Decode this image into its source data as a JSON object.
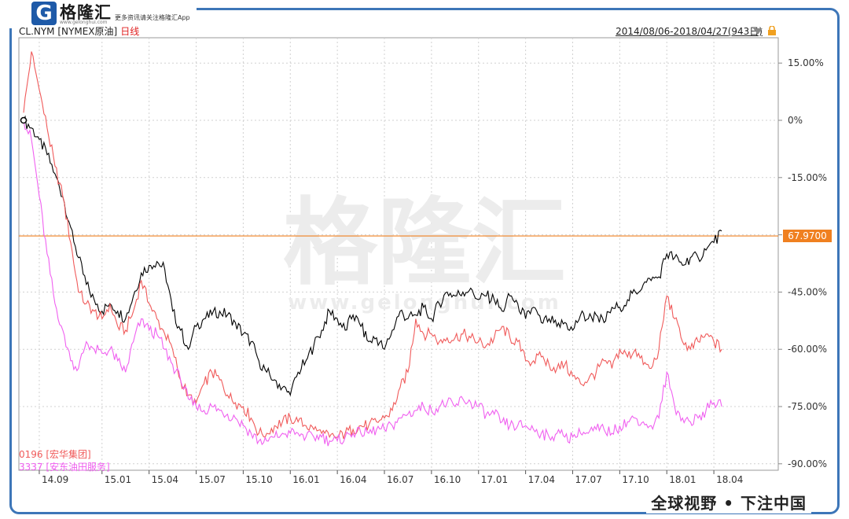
{
  "brand": {
    "logo_letter": "G",
    "name": "格隆汇",
    "url": "www.gelonghui.com",
    "slogan": "更多资讯请关注格隆汇App",
    "watermark_cn": "格隆汇",
    "watermark_url": "www.gelonghui.com"
  },
  "header": {
    "instrument": "CL.NYM [NYMEX原油]",
    "period": "日线",
    "date_range": "2014/08/06-2018/04/27(943日)"
  },
  "footer_slogan": "全球视野 • 下注中国",
  "colors": {
    "crude": "#000000",
    "s0196": "#f05a5a",
    "s3337": "#f060f0",
    "price_line": "#f08020",
    "frame": "#3d76b8",
    "grid": "#d0d0d0"
  },
  "icons": [
    "dropdown-arrow-icon",
    "lock-icon"
  ],
  "current_price_label": "67.9700",
  "chart_data": {
    "type": "line",
    "title": "CL.NYM [NYMEX原油] 日线",
    "ylabel": "",
    "xlabel": "",
    "ylim": [
      -90,
      20
    ],
    "yticks": [
      15,
      0,
      -15,
      -30,
      -45,
      -60,
      -75,
      -90
    ],
    "ytick_labels": [
      "15.00%",
      "0%",
      "-15.00%",
      "",
      "-45.00%",
      "-60.00%",
      "-75.00%",
      "-90.00%"
    ],
    "x_range": [
      0,
      46
    ],
    "x_ticks": [
      {
        "label": "14.09",
        "m": 1
      },
      {
        "label": "15.01",
        "m": 5
      },
      {
        "label": "15.04",
        "m": 8
      },
      {
        "label": "15.07",
        "m": 11
      },
      {
        "label": "15.10",
        "m": 14
      },
      {
        "label": "16.01",
        "m": 17
      },
      {
        "label": "16.04",
        "m": 20
      },
      {
        "label": "16.07",
        "m": 23
      },
      {
        "label": "16.10",
        "m": 26
      },
      {
        "label": "17.01",
        "m": 29
      },
      {
        "label": "17.04",
        "m": 32
      },
      {
        "label": "17.07",
        "m": 35
      },
      {
        "label": "17.10",
        "m": 38
      },
      {
        "label": "18.01",
        "m": 41
      },
      {
        "label": "18.04",
        "m": 44
      }
    ],
    "reference_line": {
      "y": -30.3,
      "label": "67.9700"
    },
    "legend": [
      {
        "label": "0196 [宏华集团]",
        "series": 1
      },
      {
        "label": "3337 [安东油田服务]",
        "series": 2
      }
    ],
    "series": [
      {
        "name": "CL.NYM [NYMEX原油]",
        "x": [
          0,
          0.5,
          1,
          1.5,
          2,
          2.5,
          3,
          3.5,
          4,
          4.5,
          5,
          5.5,
          6,
          6.5,
          7,
          7.5,
          8,
          8.5,
          9,
          9.5,
          10,
          10.5,
          11,
          11.5,
          12,
          12.5,
          13,
          13.5,
          14,
          14.5,
          15,
          15.5,
          16,
          16.5,
          17,
          17.5,
          18,
          18.5,
          19,
          19.5,
          20,
          20.5,
          21,
          21.5,
          22,
          22.5,
          23,
          23.5,
          24,
          24.5,
          25,
          25.5,
          26,
          26.5,
          27,
          27.5,
          28,
          28.5,
          29,
          29.5,
          30,
          30.5,
          31,
          31.5,
          32,
          32.5,
          33,
          33.5,
          34,
          34.5,
          35,
          35.5,
          36,
          36.5,
          37,
          37.5,
          38,
          38.5,
          39,
          39.5,
          40,
          40.5,
          41,
          41.5,
          42,
          42.5,
          43,
          43.5,
          44,
          44.5
        ],
        "y": [
          0,
          -2,
          -5,
          -9,
          -14,
          -20,
          -28,
          -36,
          -43,
          -47,
          -50,
          -48,
          -50,
          -52,
          -46,
          -40,
          -38,
          -37,
          -39,
          -50,
          -55,
          -60,
          -54,
          -52,
          -51,
          -50,
          -51,
          -53,
          -56,
          -58,
          -63,
          -66,
          -68,
          -70,
          -72,
          -66,
          -63,
          -59,
          -55,
          -50,
          -52,
          -55,
          -51,
          -54,
          -58,
          -57,
          -60,
          -55,
          -50,
          -52,
          -51,
          -49,
          -52,
          -48,
          -45,
          -46,
          -45,
          -44,
          -47,
          -46,
          -47,
          -50,
          -46,
          -48,
          -52,
          -49,
          -53,
          -52,
          -54,
          -53,
          -55,
          -51,
          -52,
          -51,
          -53,
          -49,
          -49,
          -47,
          -45,
          -43,
          -42,
          -41,
          -35,
          -36,
          -38,
          -36,
          -36,
          -34,
          -32,
          -29
        ]
      },
      {
        "name": "0196 [宏华集团]",
        "x": [
          0,
          0.5,
          1,
          1.5,
          2,
          2.5,
          3,
          3.5,
          4,
          4.5,
          5,
          5.5,
          6,
          6.5,
          7,
          7.5,
          8,
          8.5,
          9,
          9.5,
          10,
          10.5,
          11,
          11.5,
          12,
          12.5,
          13,
          13.5,
          14,
          14.5,
          15,
          15.5,
          16,
          16.5,
          17,
          17.5,
          18,
          18.5,
          19,
          19.5,
          20,
          20.5,
          21,
          21.5,
          22,
          22.5,
          23,
          23.5,
          24,
          24.5,
          25,
          25.5,
          26,
          26.5,
          27,
          27.5,
          28,
          28.5,
          29,
          29.5,
          30,
          30.5,
          31,
          31.5,
          32,
          32.5,
          33,
          33.5,
          34,
          34.5,
          35,
          35.5,
          36,
          36.5,
          37,
          37.5,
          38,
          38.5,
          39,
          39.5,
          40,
          40.5,
          41,
          41.5,
          42,
          42.5,
          43,
          43.5,
          44,
          44.5
        ],
        "y": [
          2,
          18,
          8,
          -2,
          -12,
          -20,
          -32,
          -45,
          -48,
          -50,
          -52,
          -48,
          -54,
          -55,
          -50,
          -42,
          -48,
          -52,
          -56,
          -60,
          -68,
          -72,
          -74,
          -69,
          -66,
          -68,
          -72,
          -74,
          -75,
          -78,
          -82,
          -82,
          -80,
          -79,
          -78,
          -79,
          -80,
          -81,
          -82,
          -83,
          -83,
          -82,
          -81,
          -80,
          -80,
          -79,
          -78,
          -76,
          -70,
          -66,
          -52,
          -56,
          -56,
          -58,
          -57,
          -57,
          -56,
          -57,
          -58,
          -59,
          -57,
          -54,
          -57,
          -58,
          -63,
          -63,
          -62,
          -64,
          -65,
          -64,
          -67,
          -69,
          -68,
          -66,
          -63,
          -65,
          -60,
          -62,
          -60,
          -64,
          -65,
          -60,
          -46,
          -52,
          -58,
          -60,
          -58,
          -56,
          -58,
          -60
        ]
      },
      {
        "name": "3337 [安东油田服务]",
        "x": [
          0,
          0.5,
          1,
          1.5,
          2,
          2.5,
          3,
          3.5,
          4,
          4.5,
          5,
          5.5,
          6,
          6.5,
          7,
          7.5,
          8,
          8.5,
          9,
          9.5,
          10,
          10.5,
          11,
          11.5,
          12,
          12.5,
          13,
          13.5,
          14,
          14.5,
          15,
          15.5,
          16,
          16.5,
          17,
          17.5,
          18,
          18.5,
          19,
          19.5,
          20,
          20.5,
          21,
          21.5,
          22,
          22.5,
          23,
          23.5,
          24,
          24.5,
          25,
          25.5,
          26,
          26.5,
          27,
          27.5,
          28,
          28.5,
          29,
          29.5,
          30,
          30.5,
          31,
          31.5,
          32,
          32.5,
          33,
          33.5,
          34,
          34.5,
          35,
          35.5,
          36,
          36.5,
          37,
          37.5,
          38,
          38.5,
          39,
          39.5,
          40,
          40.5,
          41,
          41.5,
          42,
          42.5,
          43,
          43.5,
          44,
          44.5
        ],
        "y": [
          0,
          -5,
          -20,
          -35,
          -48,
          -55,
          -63,
          -65,
          -58,
          -60,
          -61,
          -60,
          -63,
          -66,
          -58,
          -52,
          -55,
          -56,
          -60,
          -64,
          -68,
          -73,
          -75,
          -76,
          -75,
          -76,
          -77,
          -78,
          -80,
          -82,
          -84,
          -84,
          -83,
          -82,
          -82,
          -82,
          -83,
          -83,
          -83,
          -84,
          -84,
          -83,
          -82,
          -82,
          -82,
          -81,
          -81,
          -80,
          -78,
          -77,
          -76,
          -75,
          -76,
          -75,
          -74,
          -75,
          -73,
          -74,
          -75,
          -77,
          -77,
          -79,
          -80,
          -80,
          -80,
          -81,
          -82,
          -83,
          -82,
          -83,
          -83,
          -82,
          -82,
          -81,
          -81,
          -82,
          -80,
          -79,
          -78,
          -79,
          -80,
          -78,
          -66,
          -75,
          -78,
          -79,
          -78,
          -76,
          -74,
          -75
        ]
      }
    ]
  }
}
